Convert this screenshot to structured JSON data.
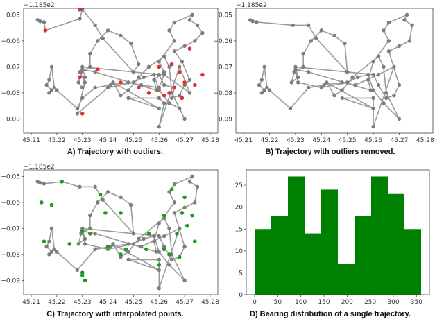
{
  "chart_data": [
    {
      "panel": "A",
      "type": "scatter",
      "caption": "A) Trajectory with outliers.",
      "offset_label": "−1.185e2",
      "xlim": [
        45.207,
        45.283
      ],
      "ylim": [
        -0.0955,
        -0.0475
      ],
      "x_ticks": [
        "45.21",
        "45.22",
        "45.23",
        "45.24",
        "45.25",
        "45.26",
        "45.27",
        "45.28"
      ],
      "y_ticks": [
        "−0.05",
        "−0.06",
        "−0.07",
        "−0.08",
        "−0.09"
      ],
      "x_tick_values": [
        45.21,
        45.22,
        45.23,
        45.24,
        45.25,
        45.26,
        45.27,
        45.28
      ],
      "y_tick_values": [
        -0.05,
        -0.06,
        -0.07,
        -0.08,
        -0.09
      ],
      "line_color": "#9a9a9a",
      "point_color": "#7d7d7d",
      "special_color": "#e03030",
      "series": [
        {
          "role": "trajectory",
          "x": [
            45.2125,
            45.2135,
            45.215,
            45.2155,
            45.229,
            45.23,
            45.235,
            45.238,
            45.25,
            45.252,
            45.249,
            45.245,
            45.24,
            45.236,
            45.233,
            45.233,
            45.2295,
            45.2285,
            45.23,
            45.231,
            45.23,
            45.26,
            45.262,
            45.266,
            45.265,
            45.268,
            45.27,
            45.272,
            45.269,
            45.266,
            45.27,
            45.274,
            45.277,
            45.275,
            45.272,
            45.273,
            45.266,
            45.264,
            45.266,
            45.26,
            45.262,
            45.258,
            45.259,
            45.235,
            45.23,
            45.229,
            45.231,
            45.228,
            45.24,
            45.25,
            45.254,
            45.258,
            45.26,
            45.264,
            45.268,
            45.27,
            45.265,
            45.264,
            45.262,
            45.256,
            45.252,
            45.248,
            45.245,
            45.242,
            45.26,
            45.248,
            45.26,
            45.262,
            45.26,
            45.268,
            45.272,
            45.262,
            45.26,
            45.253,
            45.248,
            45.241,
            45.235,
            45.23,
            45.228,
            45.22,
            45.219,
            45.218,
            45.217,
            45.216,
            45.218,
            45.217
          ],
          "y": [
            -0.052,
            -0.0525,
            -0.0528,
            -0.056,
            -0.0515,
            -0.048,
            -0.054,
            -0.059,
            -0.072,
            -0.069,
            -0.061,
            -0.058,
            -0.056,
            -0.06,
            -0.065,
            -0.07,
            -0.072,
            -0.076,
            -0.078,
            -0.074,
            -0.07,
            -0.073,
            -0.077,
            -0.078,
            -0.082,
            -0.081,
            -0.077,
            -0.075,
            -0.068,
            -0.064,
            -0.062,
            -0.06,
            -0.057,
            -0.054,
            -0.052,
            -0.05,
            -0.053,
            -0.056,
            -0.06,
            -0.068,
            -0.072,
            -0.075,
            -0.079,
            -0.072,
            -0.071,
            -0.072,
            -0.076,
            -0.088,
            -0.078,
            -0.076,
            -0.074,
            -0.073,
            -0.079,
            -0.084,
            -0.086,
            -0.09,
            -0.08,
            -0.07,
            -0.066,
            -0.07,
            -0.074,
            -0.079,
            -0.081,
            -0.076,
            -0.086,
            -0.082,
            -0.082,
            -0.084,
            -0.093,
            -0.07,
            -0.08,
            -0.073,
            -0.078,
            -0.077,
            -0.076,
            -0.077,
            -0.078,
            -0.082,
            -0.086,
            -0.079,
            -0.078,
            -0.07,
            -0.075,
            -0.077,
            -0.079,
            -0.08
          ]
        },
        {
          "role": "outliers",
          "x": [
            45.2155,
            45.229,
            45.23,
            45.236,
            45.245,
            45.252,
            45.26,
            45.266,
            45.269,
            45.272,
            45.268,
            45.265,
            45.27,
            45.277,
            45.274,
            45.264,
            45.229,
            45.256,
            45.262
          ],
          "y": [
            -0.056,
            -0.048,
            -0.088,
            -0.071,
            -0.076,
            -0.078,
            -0.07,
            -0.078,
            -0.082,
            -0.063,
            -0.072,
            -0.069,
            -0.076,
            -0.073,
            -0.077,
            -0.08,
            -0.074,
            -0.08,
            -0.081
          ]
        }
      ]
    },
    {
      "panel": "B",
      "type": "scatter",
      "caption": "B) Trajectory with outliers removed.",
      "offset_label": "−1.185e2",
      "xlim": [
        45.207,
        45.283
      ],
      "ylim": [
        -0.0955,
        -0.0475
      ],
      "x_ticks": [
        "45.21",
        "45.22",
        "45.23",
        "45.24",
        "45.25",
        "45.26",
        "45.27",
        "45.28"
      ],
      "y_ticks": [
        "−0.05",
        "−0.06",
        "−0.07",
        "−0.08",
        "−0.09"
      ],
      "x_tick_values": [
        45.21,
        45.22,
        45.23,
        45.24,
        45.25,
        45.26,
        45.27,
        45.28
      ],
      "y_tick_values": [
        -0.05,
        -0.06,
        -0.07,
        -0.08,
        -0.09
      ],
      "line_color": "#9a9a9a",
      "point_color": "#7d7d7d",
      "series": [
        {
          "role": "trajectory",
          "x": [
            45.2125,
            45.2135,
            45.215,
            45.229,
            45.235,
            45.238,
            45.25,
            45.249,
            45.245,
            45.24,
            45.236,
            45.233,
            45.233,
            45.2295,
            45.2285,
            45.231,
            45.23,
            45.26,
            45.262,
            45.265,
            45.268,
            45.27,
            45.266,
            45.27,
            45.274,
            45.275,
            45.272,
            45.273,
            45.266,
            45.264,
            45.266,
            45.26,
            45.258,
            45.259,
            45.235,
            45.23,
            45.231,
            45.24,
            45.25,
            45.254,
            45.258,
            45.26,
            45.264,
            45.27,
            45.265,
            45.264,
            45.262,
            45.252,
            45.248,
            45.245,
            45.242,
            45.26,
            45.248,
            45.26,
            45.26,
            45.268,
            45.262,
            45.253,
            45.248,
            45.241,
            45.235,
            45.228,
            45.22,
            45.219,
            45.218,
            45.217,
            45.216,
            45.218,
            45.217
          ],
          "y": [
            -0.052,
            -0.0525,
            -0.0528,
            -0.054,
            -0.054,
            -0.059,
            -0.072,
            -0.061,
            -0.058,
            -0.056,
            -0.06,
            -0.065,
            -0.07,
            -0.072,
            -0.076,
            -0.074,
            -0.07,
            -0.073,
            -0.077,
            -0.082,
            -0.081,
            -0.077,
            -0.064,
            -0.062,
            -0.06,
            -0.054,
            -0.052,
            -0.05,
            -0.053,
            -0.056,
            -0.06,
            -0.068,
            -0.075,
            -0.079,
            -0.072,
            -0.071,
            -0.076,
            -0.078,
            -0.076,
            -0.074,
            -0.073,
            -0.079,
            -0.084,
            -0.09,
            -0.08,
            -0.07,
            -0.066,
            -0.074,
            -0.079,
            -0.081,
            -0.076,
            -0.086,
            -0.082,
            -0.082,
            -0.093,
            -0.07,
            -0.073,
            -0.077,
            -0.076,
            -0.077,
            -0.078,
            -0.086,
            -0.079,
            -0.078,
            -0.07,
            -0.075,
            -0.077,
            -0.079,
            -0.08
          ]
        }
      ]
    },
    {
      "panel": "C",
      "type": "scatter",
      "caption": "C) Trajectory with interpolated points.",
      "offset_label": "−1.185e2",
      "xlim": [
        45.207,
        45.283
      ],
      "ylim": [
        -0.0955,
        -0.0475
      ],
      "x_ticks": [
        "45.21",
        "45.22",
        "45.23",
        "45.24",
        "45.25",
        "45.26",
        "45.27",
        "45.28"
      ],
      "y_ticks": [
        "−0.05",
        "−0.06",
        "−0.07",
        "−0.08",
        "−0.09"
      ],
      "x_tick_values": [
        45.21,
        45.22,
        45.23,
        45.24,
        45.25,
        45.26,
        45.27,
        45.28
      ],
      "y_tick_values": [
        -0.05,
        -0.06,
        -0.07,
        -0.08,
        -0.09
      ],
      "line_color": "#9a9a9a",
      "point_color": "#7d7d7d",
      "special_color": "#1f9a1f",
      "series": [
        {
          "role": "trajectory",
          "x": [
            45.2125,
            45.2135,
            45.215,
            45.222,
            45.229,
            45.235,
            45.238,
            45.25,
            45.249,
            45.245,
            45.24,
            45.236,
            45.233,
            45.233,
            45.2295,
            45.2285,
            45.231,
            45.23,
            45.26,
            45.262,
            45.265,
            45.268,
            45.27,
            45.266,
            45.27,
            45.274,
            45.275,
            45.272,
            45.273,
            45.266,
            45.264,
            45.266,
            45.26,
            45.258,
            45.259,
            45.235,
            45.23,
            45.231,
            45.24,
            45.25,
            45.254,
            45.258,
            45.26,
            45.264,
            45.27,
            45.265,
            45.264,
            45.262,
            45.252,
            45.248,
            45.245,
            45.242,
            45.26,
            45.248,
            45.26,
            45.26,
            45.268,
            45.262,
            45.253,
            45.248,
            45.241,
            45.235,
            45.228,
            45.22,
            45.219,
            45.218,
            45.217,
            45.216,
            45.218,
            45.217
          ],
          "y": [
            -0.052,
            -0.0525,
            -0.0528,
            -0.052,
            -0.054,
            -0.054,
            -0.059,
            -0.072,
            -0.061,
            -0.058,
            -0.056,
            -0.06,
            -0.065,
            -0.07,
            -0.072,
            -0.076,
            -0.074,
            -0.07,
            -0.073,
            -0.077,
            -0.082,
            -0.081,
            -0.077,
            -0.064,
            -0.062,
            -0.06,
            -0.054,
            -0.052,
            -0.05,
            -0.053,
            -0.056,
            -0.06,
            -0.068,
            -0.075,
            -0.079,
            -0.072,
            -0.071,
            -0.076,
            -0.078,
            -0.076,
            -0.074,
            -0.073,
            -0.079,
            -0.084,
            -0.09,
            -0.08,
            -0.07,
            -0.066,
            -0.074,
            -0.079,
            -0.081,
            -0.076,
            -0.086,
            -0.082,
            -0.082,
            -0.093,
            -0.07,
            -0.073,
            -0.077,
            -0.076,
            -0.077,
            -0.078,
            -0.086,
            -0.079,
            -0.078,
            -0.07,
            -0.075,
            -0.077,
            -0.079,
            -0.08
          ]
        },
        {
          "role": "interpolated",
          "x": [
            45.214,
            45.222,
            45.23,
            45.237,
            45.239,
            45.245,
            45.247,
            45.233,
            45.23,
            45.262,
            45.264,
            45.267,
            45.269,
            45.271,
            45.273,
            45.274,
            45.265,
            45.26,
            45.256,
            45.245,
            45.24,
            45.23,
            45.225,
            45.215,
            45.218,
            45.231,
            45.255,
            45.262,
            45.27,
            45.268
          ],
          "y": [
            -0.06,
            -0.052,
            -0.087,
            -0.057,
            -0.064,
            -0.064,
            -0.078,
            -0.072,
            -0.088,
            -0.078,
            -0.08,
            -0.072,
            -0.064,
            -0.069,
            -0.065,
            -0.075,
            -0.055,
            -0.084,
            -0.072,
            -0.08,
            -0.077,
            -0.071,
            -0.076,
            -0.075,
            -0.061,
            -0.09,
            -0.078,
            -0.065,
            -0.058,
            -0.081
          ]
        }
      ]
    },
    {
      "panel": "D",
      "type": "bar",
      "caption": "D) Bearing distribution of a single trajectory.",
      "bar_color": "#008000",
      "bin_edges": [
        0,
        36,
        72,
        108,
        144,
        180,
        216,
        252,
        288,
        324,
        360
      ],
      "values": [
        15,
        18,
        27,
        14,
        24,
        7,
        18,
        27,
        23,
        15
      ],
      "xlim": [
        -18,
        378
      ],
      "ylim": [
        0,
        28.5
      ],
      "x_ticks": [
        "0",
        "50",
        "100",
        "150",
        "200",
        "250",
        "300",
        "350"
      ],
      "y_ticks": [
        "0",
        "5",
        "10",
        "15",
        "20",
        "25"
      ],
      "x_tick_values": [
        0,
        50,
        100,
        150,
        200,
        250,
        300,
        350
      ],
      "y_tick_values": [
        0,
        5,
        10,
        15,
        20,
        25
      ]
    }
  ]
}
